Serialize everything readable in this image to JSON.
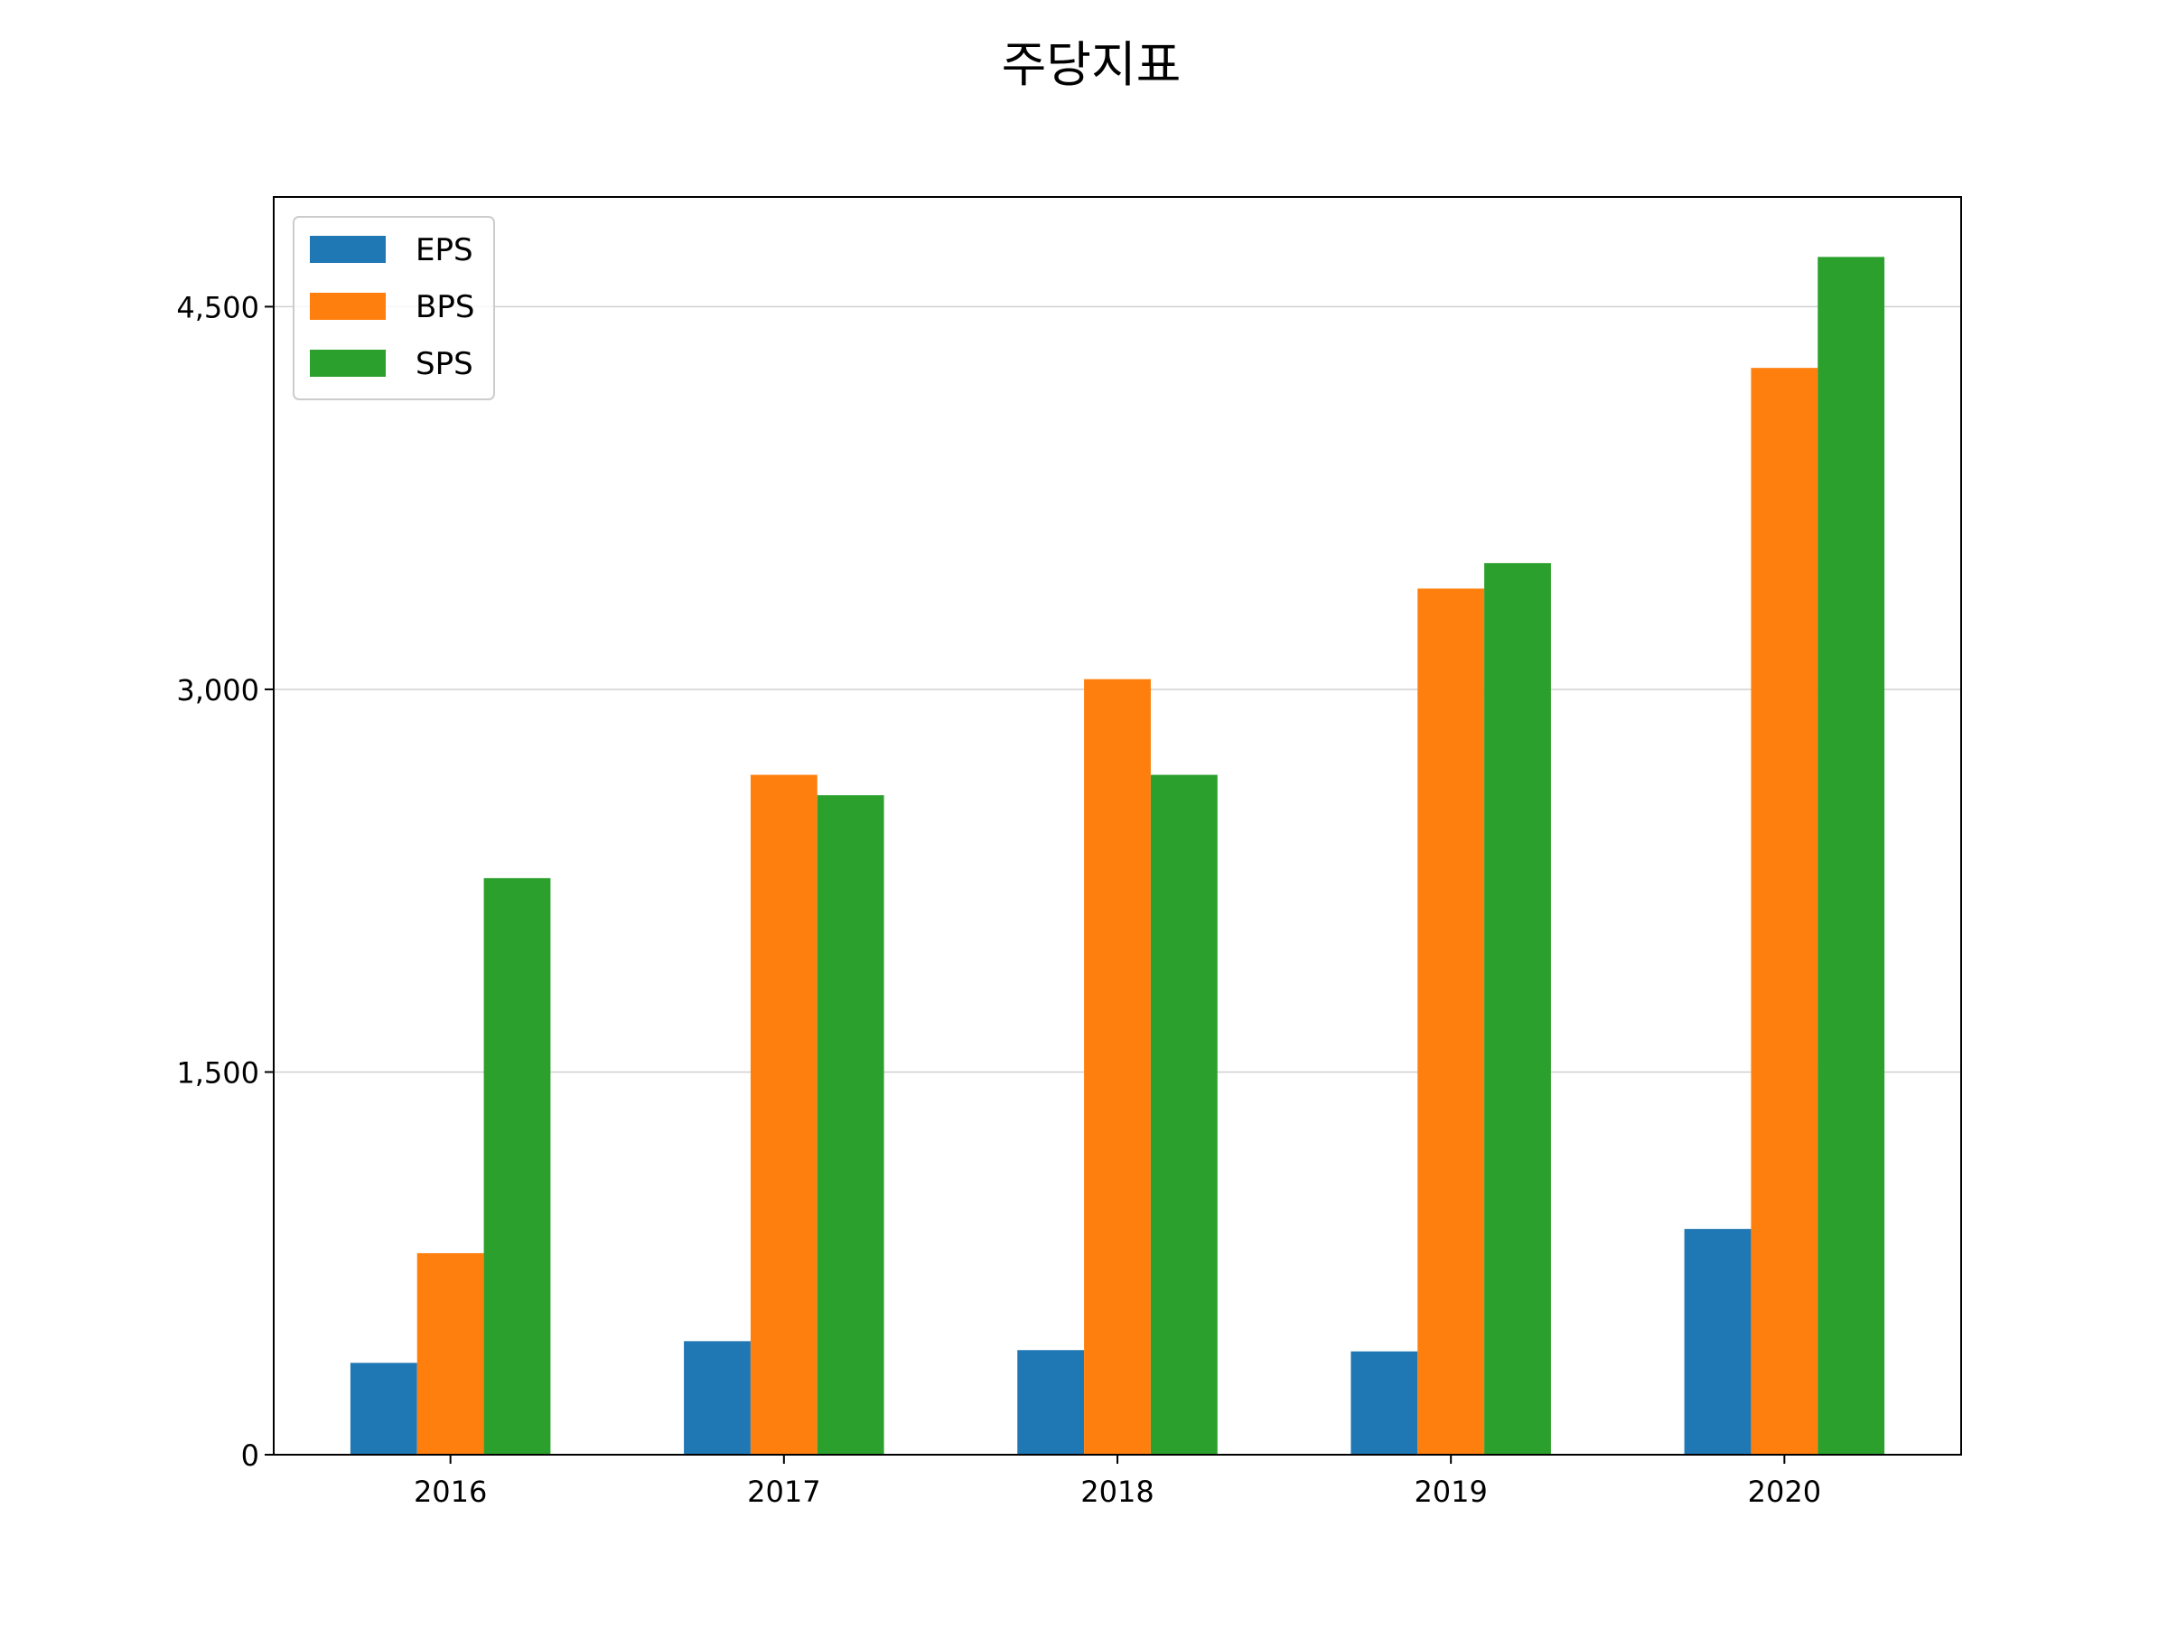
{
  "chart_data": {
    "type": "bar",
    "title": "주당지표",
    "xlabel": "",
    "ylabel": "",
    "categories": [
      "2016",
      "2017",
      "2018",
      "2019",
      "2020"
    ],
    "series": [
      {
        "name": "EPS",
        "color": "#1f77b4",
        "values": [
          360,
          445,
          410,
          405,
          885
        ]
      },
      {
        "name": "BPS",
        "color": "#ff7f0e",
        "values": [
          790,
          2665,
          3040,
          3395,
          4260
        ]
      },
      {
        "name": "SPS",
        "color": "#2ca02c",
        "values": [
          2260,
          2585,
          2665,
          3495,
          4695
        ]
      }
    ],
    "ylim": [
      0,
      4930
    ],
    "yticks": [
      0,
      1500,
      3000,
      4500
    ],
    "ytick_labels": [
      "0",
      "1,500",
      "3,000",
      "4,500"
    ],
    "grid": "y",
    "legend_position": "upper-left"
  }
}
